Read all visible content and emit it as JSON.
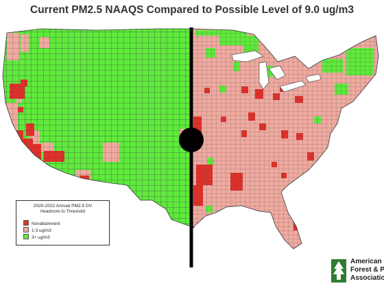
{
  "title": "Current PM2.5 NAAQS Compared to Possible Level of 9.0 ug/m3",
  "legend": {
    "title": "2020-2022 Annual PM2.5 DV",
    "subtitle": "Headroom to Threshold",
    "items": [
      {
        "label": "Nonattainment",
        "color": "#e0302a"
      },
      {
        "label": "1-3 ug/m3",
        "color": "#f0aaa0"
      },
      {
        "label": "3+ ug/m3",
        "color": "#5fea3c"
      }
    ]
  },
  "logo": {
    "line1": "American",
    "line2": "Forest & Pa",
    "line3": "Associatio",
    "mark_color": "#2e7d32"
  },
  "colors": {
    "county_border": "#444444",
    "divider": "#000000"
  }
}
